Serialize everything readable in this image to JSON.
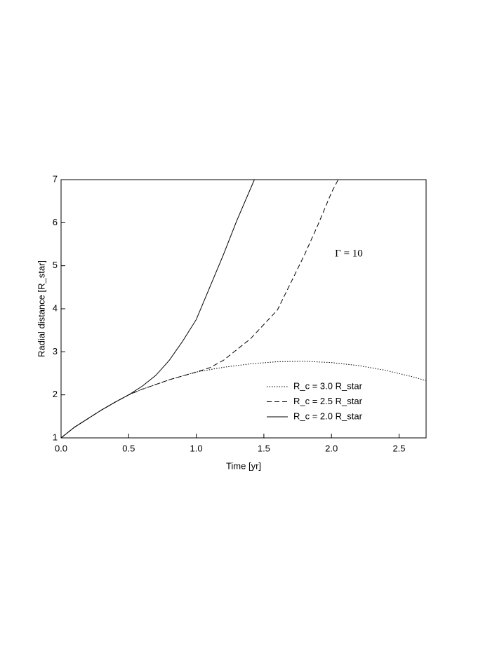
{
  "chart_data": {
    "type": "line",
    "xlabel": "Time [yr]",
    "ylabel": "Radial distance [R_star]",
    "annotation": "Γ = 10",
    "xlim": [
      0,
      2.7
    ],
    "ylim": [
      1,
      7
    ],
    "xticks": [
      {
        "value": 0,
        "label": "0.0"
      },
      {
        "value": 0.5,
        "label": "0.5"
      },
      {
        "value": 1,
        "label": "1.0"
      },
      {
        "value": 1.5,
        "label": "1.5"
      },
      {
        "value": 2,
        "label": "2.0"
      },
      {
        "value": 2.5,
        "label": "2.5"
      }
    ],
    "yticks": [
      1,
      2,
      3,
      4,
      5,
      6,
      7
    ],
    "grid": false,
    "legend": "lower right",
    "series": [
      {
        "name": "R_c = 3.0 R_star",
        "color": "#000000",
        "linestyle": "dotted",
        "x": [
          0,
          0.1,
          0.2,
          0.3,
          0.4,
          0.5,
          0.6,
          0.8,
          1.0,
          1.2,
          1.4,
          1.6,
          1.8,
          2.0,
          2.2,
          2.4,
          2.6,
          2.7
        ],
        "values": [
          1,
          1.25,
          1.45,
          1.65,
          1.83,
          2.0,
          2.13,
          2.35,
          2.53,
          2.64,
          2.72,
          2.77,
          2.78,
          2.75,
          2.68,
          2.57,
          2.42,
          2.33
        ]
      },
      {
        "name": "R_c = 2.5 R_star",
        "color": "#000000",
        "linestyle": "dashed",
        "x": [
          0,
          0.1,
          0.2,
          0.3,
          0.4,
          0.5,
          0.6,
          0.8,
          1.0,
          1.1,
          1.2,
          1.4,
          1.6,
          1.8,
          1.9,
          2.0,
          2.05
        ],
        "values": [
          1,
          1.25,
          1.45,
          1.65,
          1.83,
          2.0,
          2.13,
          2.35,
          2.53,
          2.63,
          2.8,
          3.3,
          3.97,
          5.25,
          5.95,
          6.7,
          7.0
        ]
      },
      {
        "name": "R_c = 2.0 R_star",
        "color": "#000000",
        "linestyle": "solid",
        "x": [
          0,
          0.1,
          0.2,
          0.3,
          0.4,
          0.5,
          0.6,
          0.7,
          0.8,
          0.9,
          1.0,
          1.1,
          1.2,
          1.3,
          1.43
        ],
        "values": [
          1,
          1.25,
          1.45,
          1.65,
          1.83,
          2.0,
          2.2,
          2.45,
          2.8,
          3.25,
          3.75,
          4.5,
          5.25,
          6.05,
          7.0
        ]
      }
    ]
  }
}
